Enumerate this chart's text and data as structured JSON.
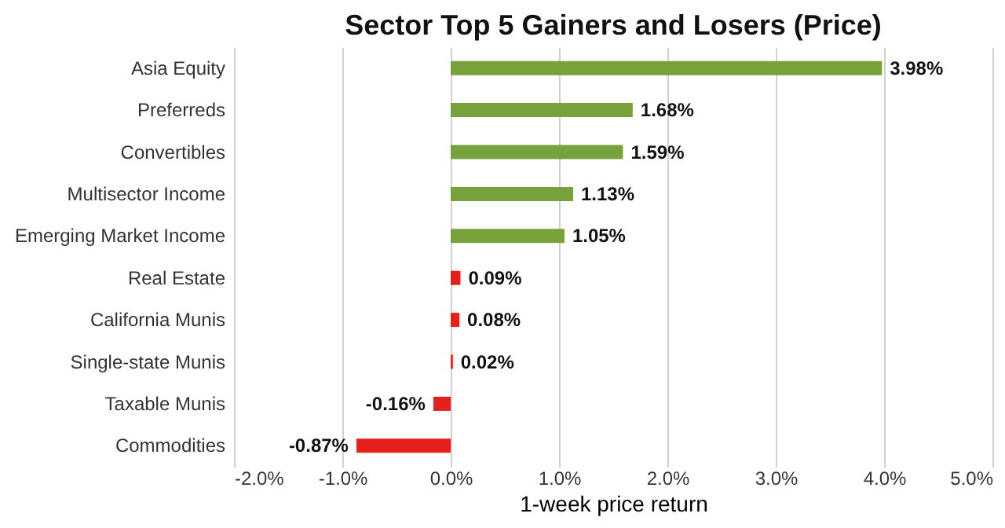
{
  "chart_data": {
    "type": "bar",
    "orientation": "horizontal",
    "title": "Sector Top 5 Gainers and Losers (Price)",
    "xlabel": "1-week price return",
    "categories": [
      "Asia Equity",
      "Preferreds",
      "Convertibles",
      "Multisector Income",
      "Emerging Market Income",
      "Real Estate",
      "California Munis",
      "Single-state Munis",
      "Taxable Munis",
      "Commodities"
    ],
    "values": [
      3.98,
      1.68,
      1.59,
      1.13,
      1.05,
      0.09,
      0.08,
      0.02,
      -0.16,
      -0.87
    ],
    "value_labels": [
      "3.98%",
      "1.68%",
      "1.59%",
      "1.13%",
      "1.05%",
      "0.09%",
      "0.08%",
      "0.02%",
      "-0.16%",
      "-0.87%"
    ],
    "colors": [
      "#77a13a",
      "#77a13a",
      "#77a13a",
      "#77a13a",
      "#77a13a",
      "#e3201c",
      "#e3201c",
      "#e3201c",
      "#e3201c",
      "#e3201c"
    ],
    "xlim": [
      -2,
      5
    ],
    "xticks": [
      {
        "value": -2,
        "label": "-2.0%"
      },
      {
        "value": -1,
        "label": "-1.0%"
      },
      {
        "value": 0,
        "label": "0.0%"
      },
      {
        "value": 1,
        "label": "1.0%"
      },
      {
        "value": 2,
        "label": "2.0%"
      },
      {
        "value": 3,
        "label": "3.0%"
      },
      {
        "value": 4,
        "label": "4.0%"
      },
      {
        "value": 5,
        "label": "5.0%"
      }
    ],
    "grid": "x"
  }
}
